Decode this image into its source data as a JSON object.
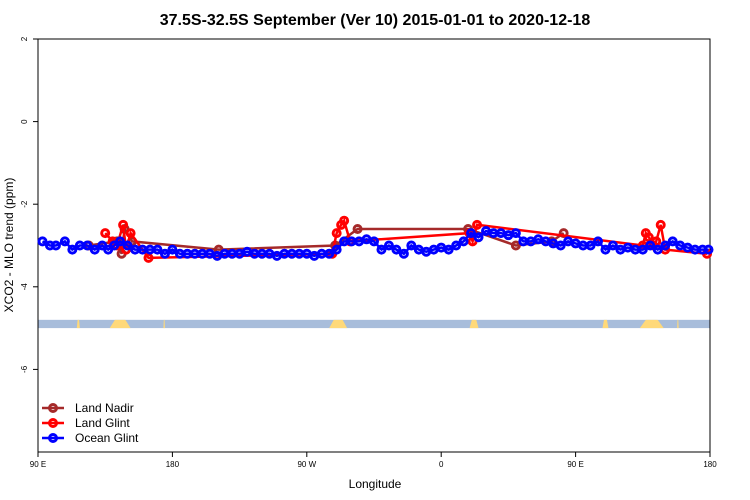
{
  "chart_data": {
    "type": "line",
    "title": "37.5S-32.5S September (Ver 10)   2015-01-01 to 2020-12-18",
    "xlabel": "Longitude",
    "ylabel": "XCO2 - MLO trend (ppm)",
    "xlim": [
      90,
      540
    ],
    "ylim": [
      -8,
      2
    ],
    "x_ticks": [
      {
        "value": 90,
        "label": "90 E"
      },
      {
        "value": 180,
        "label": "180"
      },
      {
        "value": 270,
        "label": "90 W"
      },
      {
        "value": 360,
        "label": "0"
      },
      {
        "value": 450,
        "label": "90 E"
      },
      {
        "value": 540,
        "label": "180"
      }
    ],
    "y_ticks": [
      {
        "value": 2,
        "label": "2"
      },
      {
        "value": 0,
        "label": "0"
      },
      {
        "value": -2,
        "label": "-2"
      },
      {
        "value": -4,
        "label": "-4"
      },
      {
        "value": -6,
        "label": "-6"
      }
    ],
    "grid": false,
    "legend_position": "bottom-left",
    "land_strip": {
      "y_range": [
        -5.0,
        -4.8
      ],
      "ocean_color": "#a8bddb",
      "land_color": "#ffd97a",
      "land_segments": [
        [
          116,
          118
        ],
        [
          138,
          152
        ],
        [
          174,
          175
        ],
        [
          285,
          297
        ],
        [
          379,
          385
        ],
        [
          468,
          472
        ],
        [
          493,
          509
        ],
        [
          518,
          519
        ]
      ]
    },
    "series": [
      {
        "name": "Land Nadir",
        "color": "#a52a2a",
        "x": [
          124,
          143,
          146,
          148,
          153,
          211,
          289,
          304,
          378,
          410,
          434,
          442
        ],
        "y": [
          -3.0,
          -2.9,
          -3.2,
          -2.6,
          -2.9,
          -3.1,
          -3.0,
          -2.6,
          -2.6,
          -3.0,
          -2.9,
          -2.7
        ]
      },
      {
        "name": "Land Glint",
        "color": "#ff0000",
        "x": [
          135,
          140,
          143,
          147,
          149,
          152,
          164,
          287,
          290,
          293,
          295,
          299,
          379,
          381,
          384,
          495,
          497,
          499,
          502,
          504,
          507,
          510,
          538
        ],
        "y": [
          -2.7,
          -2.9,
          -3.0,
          -2.5,
          -3.1,
          -2.7,
          -3.3,
          -3.2,
          -2.7,
          -2.5,
          -2.4,
          -2.9,
          -2.7,
          -2.9,
          -2.5,
          -3.0,
          -2.7,
          -2.8,
          -3.0,
          -2.9,
          -2.5,
          -3.1,
          -3.2
        ]
      },
      {
        "name": "Ocean Glint",
        "color": "#0000ff",
        "x": [
          93,
          98,
          102,
          108,
          113,
          118,
          123,
          128,
          133,
          137,
          141,
          145,
          150,
          155,
          160,
          165,
          170,
          175,
          180,
          185,
          190,
          195,
          200,
          205,
          210,
          215,
          220,
          225,
          230,
          235,
          240,
          245,
          250,
          255,
          260,
          265,
          270,
          275,
          280,
          285,
          290,
          295,
          300,
          305,
          310,
          315,
          320,
          325,
          330,
          335,
          340,
          345,
          350,
          355,
          360,
          365,
          370,
          375,
          380,
          385,
          390,
          395,
          400,
          405,
          410,
          415,
          420,
          425,
          430,
          435,
          440,
          445,
          450,
          455,
          460,
          465,
          470,
          475,
          480,
          485,
          490,
          495,
          500,
          505,
          510,
          515,
          520,
          525,
          530,
          535,
          539
        ],
        "y": [
          -2.9,
          -3.0,
          -3.0,
          -2.9,
          -3.1,
          -3.0,
          -3.0,
          -3.1,
          -3.0,
          -3.1,
          -3.0,
          -2.9,
          -3.0,
          -3.1,
          -3.1,
          -3.1,
          -3.1,
          -3.2,
          -3.1,
          -3.2,
          -3.2,
          -3.2,
          -3.2,
          -3.2,
          -3.25,
          -3.2,
          -3.2,
          -3.2,
          -3.15,
          -3.2,
          -3.2,
          -3.2,
          -3.25,
          -3.2,
          -3.2,
          -3.2,
          -3.2,
          -3.25,
          -3.2,
          -3.2,
          -3.1,
          -2.9,
          -2.9,
          -2.9,
          -2.85,
          -2.9,
          -3.1,
          -3.0,
          -3.1,
          -3.2,
          -3.0,
          -3.1,
          -3.15,
          -3.1,
          -3.05,
          -3.1,
          -3.0,
          -2.9,
          -2.7,
          -2.8,
          -2.65,
          -2.7,
          -2.7,
          -2.75,
          -2.7,
          -2.9,
          -2.9,
          -2.85,
          -2.9,
          -2.95,
          -3.0,
          -2.9,
          -2.95,
          -3.0,
          -3.0,
          -2.9,
          -3.1,
          -3.0,
          -3.1,
          -3.05,
          -3.1,
          -3.1,
          -3.0,
          -3.1,
          -3.0,
          -2.9,
          -3.0,
          -3.05,
          -3.1,
          -3.1,
          -3.1
        ]
      }
    ]
  }
}
